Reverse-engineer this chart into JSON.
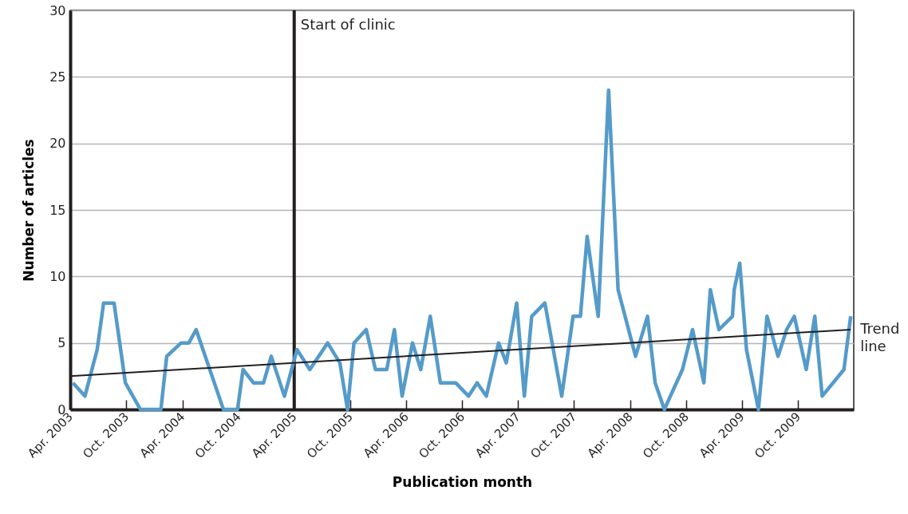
{
  "chart_data": {
    "type": "line",
    "xlabel": "Publication month",
    "ylabel": "Number of articles",
    "grid": "y",
    "xlim": [
      "2003-04-01",
      "2010-04-01"
    ],
    "xticks": [
      {
        "value": "2003-04",
        "label": "Apr. 2003"
      },
      {
        "value": "2003-10",
        "label": "Oct. 2003"
      },
      {
        "value": "2004-04",
        "label": "Apr. 2004"
      },
      {
        "value": "2004-10",
        "label": "Oct. 2004"
      },
      {
        "value": "2005-04",
        "label": "Apr. 2005"
      },
      {
        "value": "2005-10",
        "label": "Oct. 2005"
      },
      {
        "value": "2006-04",
        "label": "Apr. 2006"
      },
      {
        "value": "2006-10",
        "label": "Oct. 2006"
      },
      {
        "value": "2007-04",
        "label": "Apr. 2007"
      },
      {
        "value": "2007-10",
        "label": "Oct. 2007"
      },
      {
        "value": "2008-04",
        "label": "Apr. 2008"
      },
      {
        "value": "2008-10",
        "label": "Oct. 2008"
      },
      {
        "value": "2009-04",
        "label": "Apr. 2009"
      },
      {
        "value": "2009-10",
        "label": "Oct. 2009"
      }
    ],
    "ylim": [
      0,
      30
    ],
    "yticks": [
      0,
      5,
      10,
      15,
      20,
      25,
      30
    ],
    "ref_lines": [
      {
        "axis": "x",
        "value": "2005-04-01",
        "label": "Start of clinic",
        "color": "#231f20"
      }
    ],
    "series": [
      {
        "color": "#559bc9",
        "x": [
          "2003-04-10",
          "2003-05-19",
          "2003-06-28",
          "2003-07-19",
          "2003-08-22",
          "2003-09-28",
          "2003-11-16",
          "2004-01-22",
          "2004-02-10",
          "2004-03-28",
          "2004-04-22",
          "2004-05-16",
          "2004-08-13",
          "2004-09-28",
          "2004-10-16",
          "2004-11-19",
          "2004-12-22",
          "2005-01-16",
          "2005-02-28",
          "2005-04-10",
          "2005-05-22",
          "2005-07-19",
          "2005-08-28",
          "2005-09-22",
          "2005-10-13",
          "2005-11-22",
          "2005-12-22",
          "2006-01-28",
          "2006-02-22",
          "2006-03-19",
          "2006-04-22",
          "2006-05-19",
          "2006-06-19",
          "2006-07-22",
          "2006-09-10",
          "2006-10-22",
          "2006-11-19",
          "2006-12-19",
          "2007-01-28",
          "2007-02-22",
          "2007-03-28",
          "2007-04-22",
          "2007-05-16",
          "2007-06-28",
          "2007-08-22",
          "2007-09-28",
          "2007-10-22",
          "2007-11-13",
          "2007-12-19",
          "2008-01-22",
          "2008-02-22",
          "2008-04-19",
          "2008-05-28",
          "2008-06-22",
          "2008-07-22",
          "2008-09-19",
          "2008-10-22",
          "2008-11-28",
          "2008-12-19",
          "2009-01-16",
          "2009-03-01",
          "2009-03-07",
          "2009-03-25",
          "2009-04-16",
          "2009-05-25",
          "2009-06-22",
          "2009-07-28",
          "2009-08-25",
          "2009-09-19",
          "2009-10-28",
          "2009-11-25",
          "2009-12-19",
          "2010-02-28",
          "2010-03-22"
        ],
        "values": [
          2,
          1,
          4.5,
          8,
          8,
          2,
          0,
          0,
          4,
          5,
          5,
          6,
          0,
          0,
          3,
          2,
          2,
          4,
          1,
          4.5,
          3,
          5,
          3.5,
          0,
          5,
          6,
          3,
          3,
          6,
          1,
          5,
          3,
          7,
          2,
          2,
          1,
          2,
          1,
          5,
          3.5,
          8,
          1,
          7,
          8,
          1,
          7,
          7,
          13,
          7,
          24,
          9,
          4,
          7,
          2,
          0,
          3,
          6,
          2,
          9,
          6,
          7,
          9,
          11,
          4.5,
          0,
          7,
          4,
          6,
          7,
          3,
          7,
          1,
          3,
          7
        ]
      },
      {
        "name": "Trend line",
        "type": "line",
        "color": "#231f20",
        "x": [
          "2003-04-01",
          "2010-03-22"
        ],
        "values": [
          2.5,
          6
        ]
      }
    ]
  }
}
